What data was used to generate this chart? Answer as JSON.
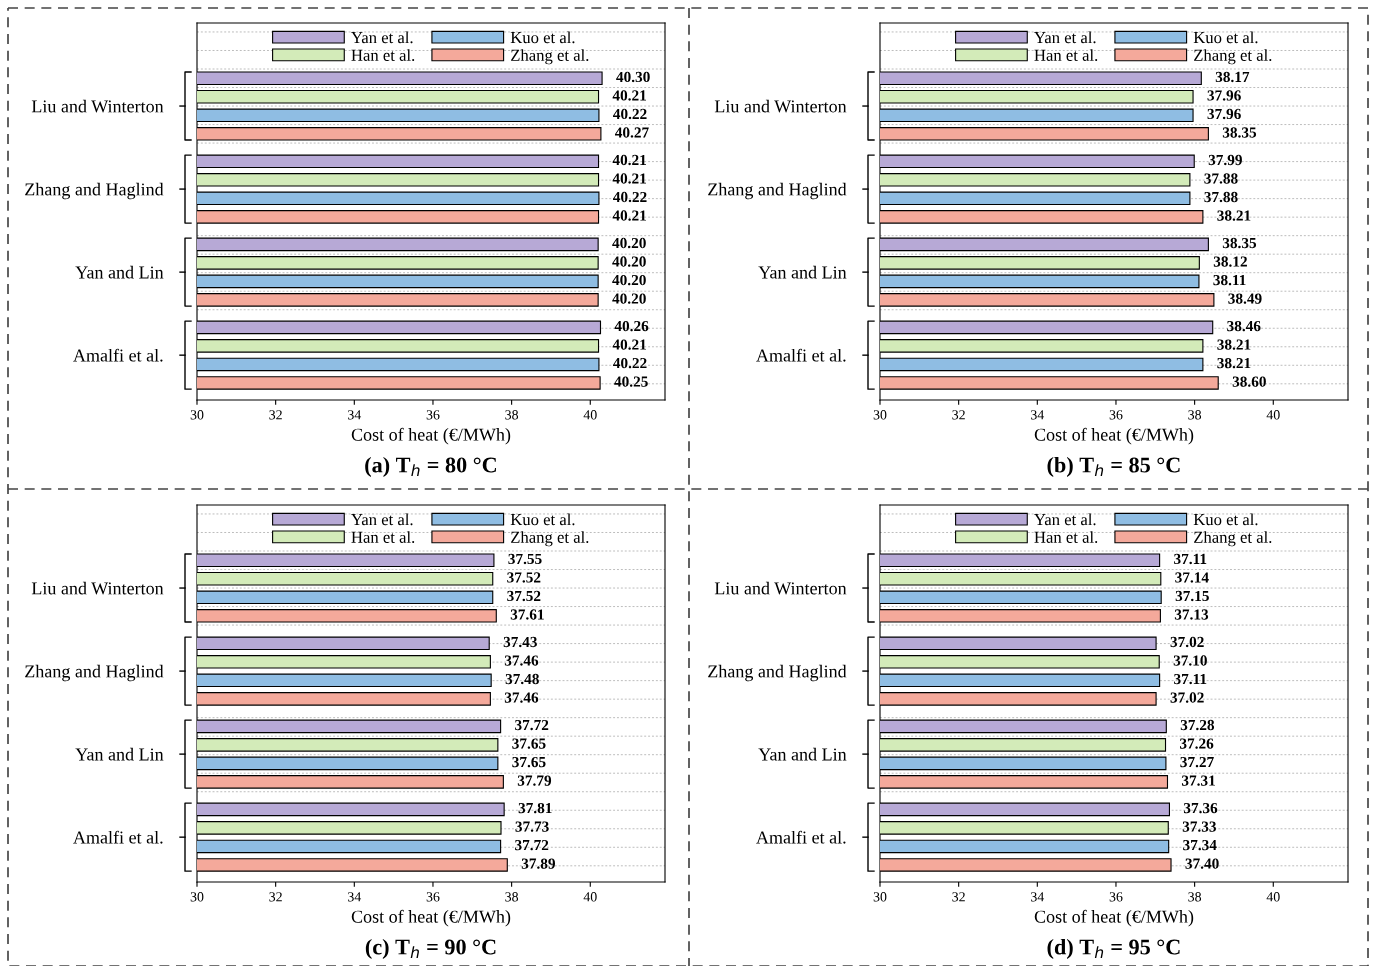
{
  "chart_data": [
    {
      "type": "bar",
      "orientation": "horizontal",
      "title": "(a) T$_{h}$ = 80 °C",
      "xlabel": "Cost of heat (€/MWh)",
      "categories": [
        "Liu and Winterton",
        "Zhang and Haglind",
        "Yan and Lin",
        "Amalfi et al."
      ],
      "xlim": [
        30,
        41.9
      ],
      "xticks": [
        30,
        32,
        34,
        36,
        38,
        40
      ],
      "legend": "top",
      "grid": "y",
      "series": [
        {
          "name": "Yan et al.",
          "color": "#b7a9d6",
          "values": [
            40.3,
            40.21,
            40.2,
            40.26
          ],
          "value_labels": [
            "40.30",
            "40.21",
            "40.20",
            "40.26"
          ]
        },
        {
          "name": "Han et al.",
          "color": "#d3ebb9",
          "values": [
            40.21,
            40.21,
            40.2,
            40.21
          ],
          "value_labels": [
            "40.21",
            "40.21",
            "40.20",
            "40.21"
          ]
        },
        {
          "name": "Kuo et al.",
          "color": "#8fbde3",
          "values": [
            40.22,
            40.22,
            40.2,
            40.22
          ],
          "value_labels": [
            "40.22",
            "40.22",
            "40.20",
            "40.22"
          ]
        },
        {
          "name": "Zhang et al.",
          "color": "#f4a99b",
          "values": [
            40.27,
            40.21,
            40.2,
            40.25
          ],
          "value_labels": [
            "40.27",
            "40.21",
            "40.20",
            "40.25"
          ]
        }
      ]
    },
    {
      "type": "bar",
      "orientation": "horizontal",
      "title": "(b) T$_{h}$ = 85 °C",
      "xlabel": "Cost of heat (€/MWh)",
      "categories": [
        "Liu and Winterton",
        "Zhang and Haglind",
        "Yan and Lin",
        "Amalfi et al."
      ],
      "xlim": [
        30,
        41.9
      ],
      "xticks": [
        30,
        32,
        34,
        36,
        38,
        40
      ],
      "legend": "top",
      "grid": "y",
      "series": [
        {
          "name": "Yan et al.",
          "color": "#b7a9d6",
          "values": [
            38.17,
            37.99,
            38.35,
            38.46
          ],
          "value_labels": [
            "38.17",
            "37.99",
            "38.35",
            "38.46"
          ]
        },
        {
          "name": "Han et al.",
          "color": "#d3ebb9",
          "values": [
            37.96,
            37.88,
            38.12,
            38.21
          ],
          "value_labels": [
            "37.96",
            "37.88",
            "38.12",
            "38.21"
          ]
        },
        {
          "name": "Kuo et al.",
          "color": "#8fbde3",
          "values": [
            37.96,
            37.88,
            38.11,
            38.21
          ],
          "value_labels": [
            "37.96",
            "37.88",
            "38.11",
            "38.21"
          ]
        },
        {
          "name": "Zhang et al.",
          "color": "#f4a99b",
          "values": [
            38.35,
            38.21,
            38.49,
            38.6
          ],
          "value_labels": [
            "38.35",
            "38.21",
            "38.49",
            "38.60"
          ]
        }
      ]
    },
    {
      "type": "bar",
      "orientation": "horizontal",
      "title": "(c) T$_{h}$ = 90 °C",
      "xlabel": "Cost of heat (€/MWh)",
      "categories": [
        "Liu and Winterton",
        "Zhang and Haglind",
        "Yan and Lin",
        "Amalfi et al."
      ],
      "xlim": [
        30,
        41.9
      ],
      "xticks": [
        30,
        32,
        34,
        36,
        38,
        40
      ],
      "legend": "top",
      "grid": "y",
      "series": [
        {
          "name": "Yan et al.",
          "color": "#b7a9d6",
          "values": [
            37.55,
            37.43,
            37.72,
            37.81
          ],
          "value_labels": [
            "37.55",
            "37.43",
            "37.72",
            "37.81"
          ]
        },
        {
          "name": "Han et al.",
          "color": "#d3ebb9",
          "values": [
            37.52,
            37.46,
            37.65,
            37.73
          ],
          "value_labels": [
            "37.52",
            "37.46",
            "37.65",
            "37.73"
          ]
        },
        {
          "name": "Kuo et al.",
          "color": "#8fbde3",
          "values": [
            37.52,
            37.48,
            37.65,
            37.72
          ],
          "value_labels": [
            "37.52",
            "37.48",
            "37.65",
            "37.72"
          ]
        },
        {
          "name": "Zhang et al.",
          "color": "#f4a99b",
          "values": [
            37.61,
            37.46,
            37.79,
            37.89
          ],
          "value_labels": [
            "37.61",
            "37.46",
            "37.79",
            "37.89"
          ]
        }
      ]
    },
    {
      "type": "bar",
      "orientation": "horizontal",
      "title": "(d) T$_{h}$ = 95 °C",
      "xlabel": "Cost of heat (€/MWh)",
      "categories": [
        "Liu and Winterton",
        "Zhang and Haglind",
        "Yan and Lin",
        "Amalfi et al."
      ],
      "xlim": [
        30,
        41.9
      ],
      "xticks": [
        30,
        32,
        34,
        36,
        38,
        40
      ],
      "legend": "top",
      "grid": "y",
      "series": [
        {
          "name": "Yan et al.",
          "color": "#b7a9d6",
          "values": [
            37.11,
            37.02,
            37.28,
            37.36
          ],
          "value_labels": [
            "37.11",
            "37.02",
            "37.28",
            "37.36"
          ]
        },
        {
          "name": "Han et al.",
          "color": "#d3ebb9",
          "values": [
            37.14,
            37.1,
            37.26,
            37.33
          ],
          "value_labels": [
            "37.14",
            "37.10",
            "37.26",
            "37.33"
          ]
        },
        {
          "name": "Kuo et al.",
          "color": "#8fbde3",
          "values": [
            37.15,
            37.11,
            37.27,
            37.34
          ],
          "value_labels": [
            "37.15",
            "37.11",
            "37.27",
            "37.34"
          ]
        },
        {
          "name": "Zhang et al.",
          "color": "#f4a99b",
          "values": [
            37.13,
            37.02,
            37.31,
            37.4
          ],
          "value_labels": [
            "37.13",
            "37.02",
            "37.31",
            "37.40"
          ]
        }
      ]
    }
  ]
}
